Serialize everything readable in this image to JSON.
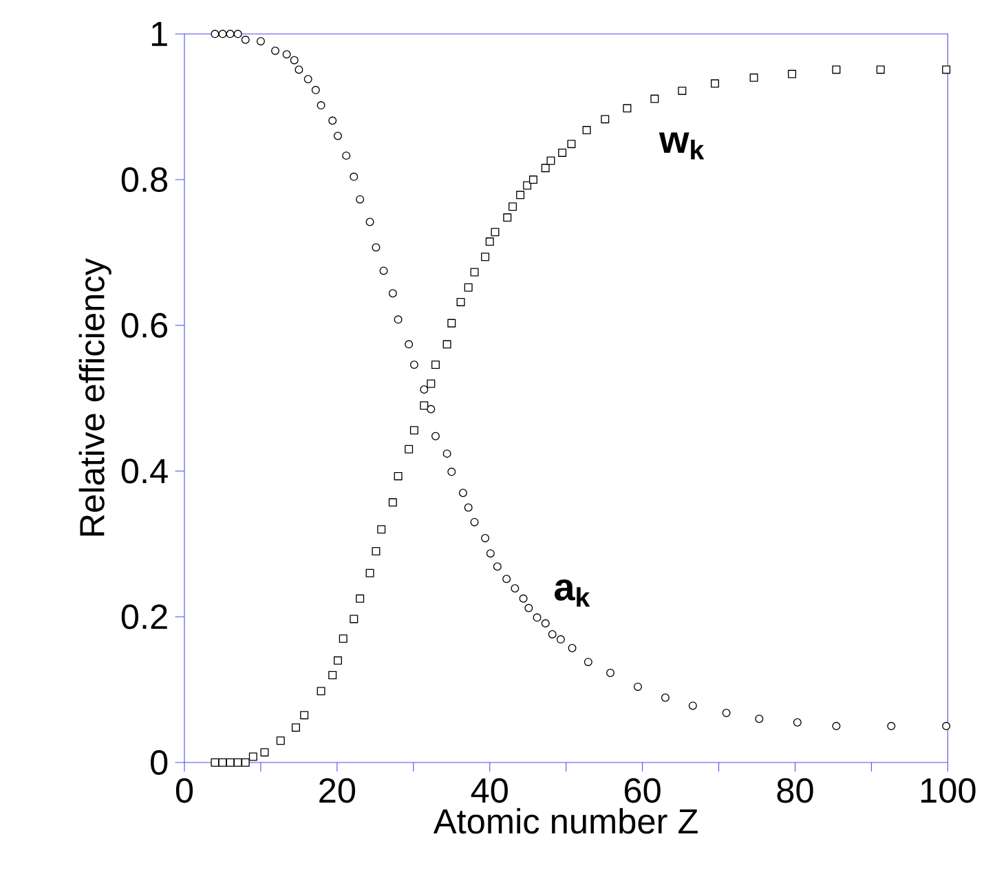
{
  "chart_data": {
    "type": "scatter",
    "xlabel": "Atomic number Z",
    "ylabel": "Relative efficiency",
    "xlim": [
      0,
      100
    ],
    "ylim": [
      0,
      1
    ],
    "xticks": [
      0,
      20,
      40,
      60,
      80,
      100
    ],
    "yticks": [
      0,
      0.2,
      0.4,
      0.6,
      0.8,
      1
    ],
    "grid": false,
    "legend": false,
    "series": [
      {
        "name": "w$_{k}$",
        "color": "#000000",
        "marker": "square",
        "x": [
          4,
          5,
          6,
          7,
          8,
          9,
          10.5,
          12.6,
          14.6,
          15.7,
          17.9,
          19.4,
          20.1,
          20.8,
          22.2,
          23,
          24.3,
          25.1,
          25.8,
          27.3,
          28,
          29.4,
          30.1,
          31.4,
          32.3,
          32.9,
          34.4,
          35,
          36.2,
          37.2,
          38,
          39.4,
          40,
          40.7,
          42.3,
          43,
          44,
          44.9,
          45.7,
          47.3,
          48,
          49.5,
          50.7,
          52.7,
          55.1,
          58,
          61.6,
          65.2,
          69.5,
          74.6,
          79.6,
          85.4,
          91.2,
          99.8
        ],
        "values": [
          0,
          0,
          0,
          0,
          0,
          0.008,
          0.014,
          0.03,
          0.048,
          0.065,
          0.098,
          0.12,
          0.14,
          0.17,
          0.197,
          0.225,
          0.26,
          0.29,
          0.32,
          0.357,
          0.393,
          0.43,
          0.456,
          0.49,
          0.52,
          0.546,
          0.574,
          0.603,
          0.632,
          0.652,
          0.673,
          0.694,
          0.715,
          0.728,
          0.748,
          0.763,
          0.779,
          0.792,
          0.8,
          0.816,
          0.826,
          0.837,
          0.849,
          0.868,
          0.883,
          0.898,
          0.911,
          0.922,
          0.932,
          0.94,
          0.945,
          0.951,
          0.951,
          0.951
        ]
      },
      {
        "name": "a$_{k}$",
        "color": "#000000",
        "marker": "circle",
        "x": [
          4,
          5,
          6,
          7,
          8,
          10,
          11.9,
          13.4,
          14.4,
          15,
          16.2,
          17.2,
          17.9,
          19.4,
          20.1,
          21.2,
          22.2,
          23,
          24.3,
          25.1,
          26.1,
          27.3,
          28,
          29.4,
          30.1,
          31.4,
          32.3,
          32.9,
          34.4,
          35,
          36.5,
          37.2,
          38,
          39.4,
          40.1,
          41,
          42.2,
          43.3,
          44.4,
          45.1,
          46.2,
          47.3,
          48.2,
          49.3,
          50.8,
          52.9,
          55.8,
          59.4,
          63,
          66.6,
          71,
          75.3,
          80.3,
          85.4,
          92.6,
          99.8
        ],
        "values": [
          1,
          1,
          1,
          1,
          0.992,
          0.99,
          0.977,
          0.972,
          0.964,
          0.951,
          0.938,
          0.923,
          0.902,
          0.881,
          0.86,
          0.833,
          0.804,
          0.773,
          0.742,
          0.707,
          0.675,
          0.644,
          0.608,
          0.574,
          0.546,
          0.512,
          0.485,
          0.448,
          0.424,
          0.399,
          0.37,
          0.35,
          0.33,
          0.308,
          0.287,
          0.269,
          0.252,
          0.239,
          0.225,
          0.212,
          0.199,
          0.191,
          0.176,
          0.169,
          0.157,
          0.138,
          0.123,
          0.104,
          0.089,
          0.078,
          0.068,
          0.06,
          0.055,
          0.05,
          0.05,
          0.05
        ]
      }
    ]
  }
}
